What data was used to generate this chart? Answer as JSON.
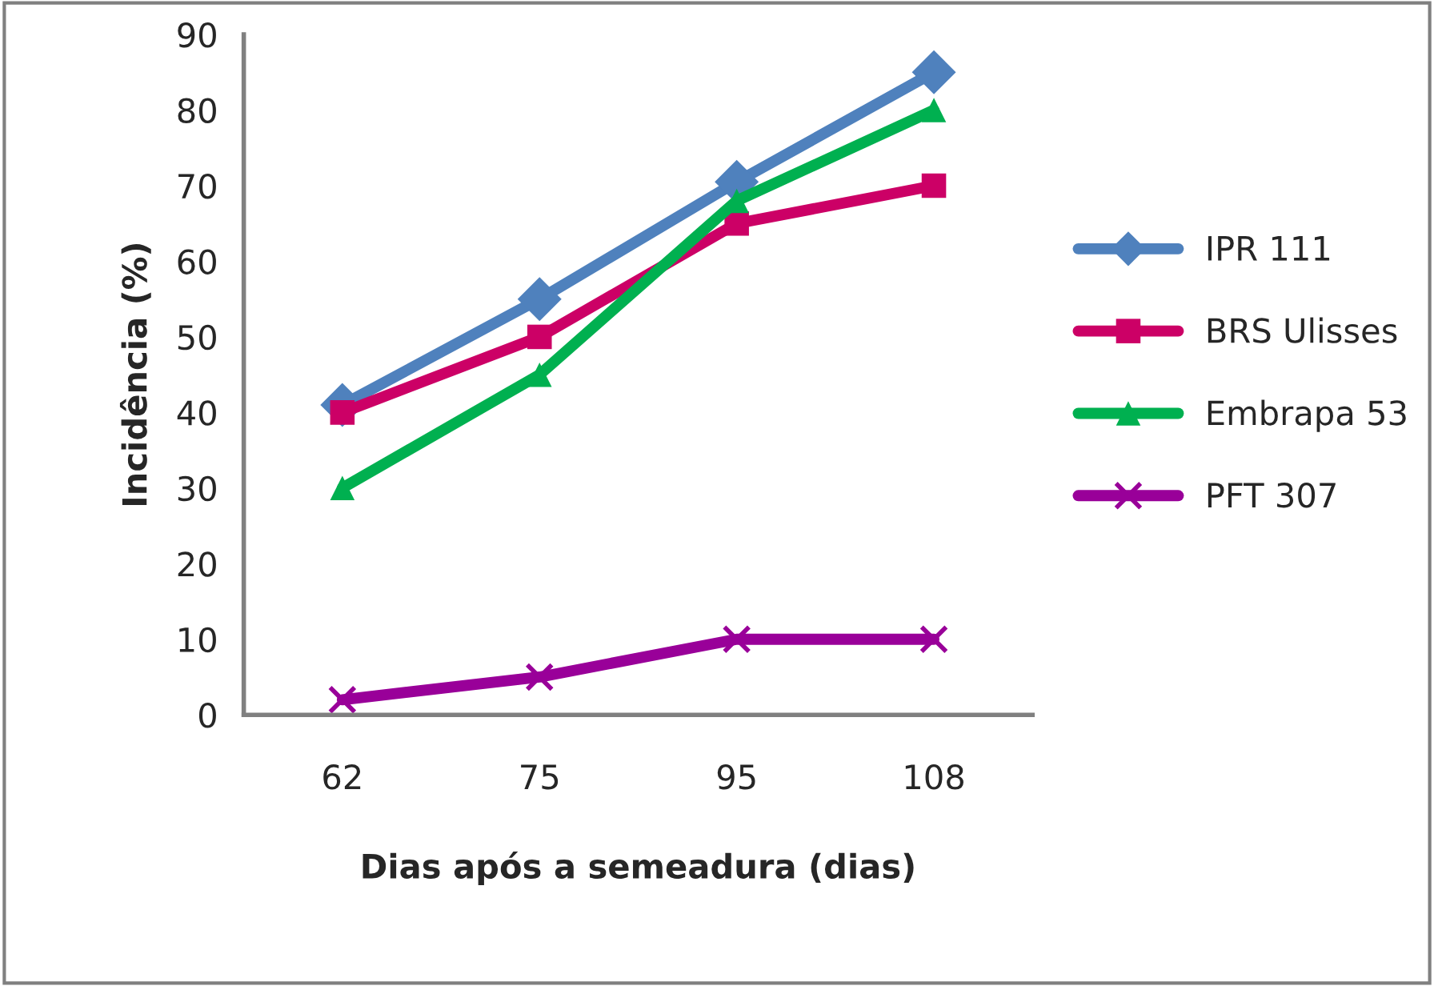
{
  "chart_data": {
    "type": "line",
    "xlabel": "Dias após a semeadura (dias)",
    "ylabel": "Incidência (%)",
    "categories": [
      "62",
      "75",
      "95",
      "108"
    ],
    "ylim": [
      0,
      90
    ],
    "yticks": [
      0,
      10,
      20,
      30,
      40,
      50,
      60,
      70,
      80,
      90
    ],
    "grid": false,
    "legend": "right",
    "series": [
      {
        "name": "IPR 111",
        "color": "#4f81bd",
        "marker": "diamond",
        "values": [
          41,
          55,
          70.5,
          85
        ]
      },
      {
        "name": "BRS Ulisses",
        "color": "#cc0066",
        "marker": "square",
        "values": [
          40,
          50,
          65,
          70
        ]
      },
      {
        "name": "Embrapa 53",
        "color": "#00b050",
        "marker": "triangle",
        "values": [
          30,
          45,
          68,
          80
        ]
      },
      {
        "name": "PFT 307",
        "color": "#990099",
        "marker": "cross",
        "values": [
          2,
          5,
          10,
          10
        ]
      }
    ]
  }
}
